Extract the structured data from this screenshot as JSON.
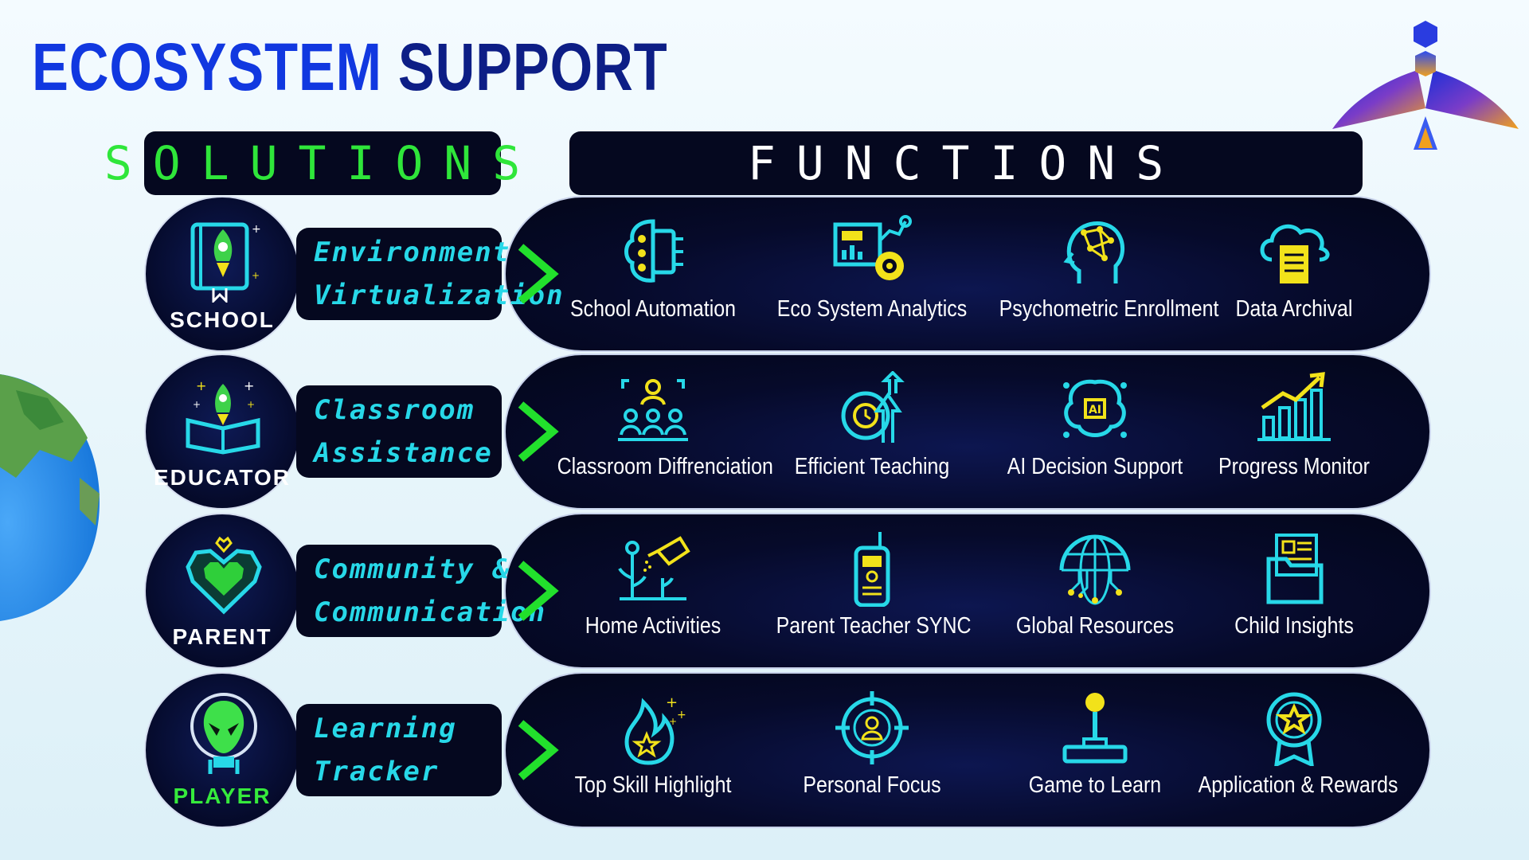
{
  "title": {
    "part1": "ECOSYSTEM",
    "part2": "SUPPORT"
  },
  "headers": {
    "solutions": "SOLUTIONS",
    "functions": "FUNCTIONS"
  },
  "colors": {
    "cyan": "#27d8e8",
    "green": "#36ea3c",
    "yellow": "#f2e21a",
    "dark": "#05081f",
    "blue": "#1138e0"
  },
  "rows": [
    {
      "role": "SCHOOL",
      "role_icon": "book-rocket-icon",
      "solution": [
        "Environment",
        "Virtualization"
      ],
      "functions": [
        {
          "label": "School Automation",
          "icon": "chip-brain-icon"
        },
        {
          "label": "Eco System Analytics",
          "icon": "analytics-chart-icon"
        },
        {
          "label": "Psychometric Enrollment",
          "icon": "head-network-icon"
        },
        {
          "label": "Data Archival",
          "icon": "cloud-document-icon"
        }
      ]
    },
    {
      "role": "EDUCATOR",
      "role_icon": "open-book-rocket-icon",
      "solution": [
        "Classroom",
        "Assistance"
      ],
      "functions": [
        {
          "label": "Classroom Diffrenciation",
          "icon": "group-users-icon"
        },
        {
          "label": "Efficient Teaching",
          "icon": "clock-arrows-icon"
        },
        {
          "label": "AI Decision Support",
          "icon": "ai-chip-icon"
        },
        {
          "label": "Progress Monitor",
          "icon": "growth-bars-icon"
        }
      ]
    },
    {
      "role": "PARENT",
      "role_icon": "pixel-heart-icon",
      "solution": [
        "Community &",
        "Communication"
      ],
      "functions": [
        {
          "label": "Home Activities",
          "icon": "watering-plants-icon"
        },
        {
          "label": "Parent Teacher SYNC",
          "icon": "walkie-talkie-icon"
        },
        {
          "label": "Global Resources",
          "icon": "globe-network-icon"
        },
        {
          "label": "Child Insights",
          "icon": "folder-profile-icon"
        }
      ]
    },
    {
      "role": "PLAYER",
      "role_icon": "alien-astronaut-icon",
      "solution": [
        "Learning",
        "Tracker"
      ],
      "functions": [
        {
          "label": "Top Skill Highlight",
          "icon": "flame-star-icon"
        },
        {
          "label": "Personal Focus",
          "icon": "target-person-icon"
        },
        {
          "label": "Game to Learn",
          "icon": "joystick-icon"
        },
        {
          "label": "Application & Rewards",
          "icon": "award-badge-icon"
        }
      ]
    }
  ]
}
